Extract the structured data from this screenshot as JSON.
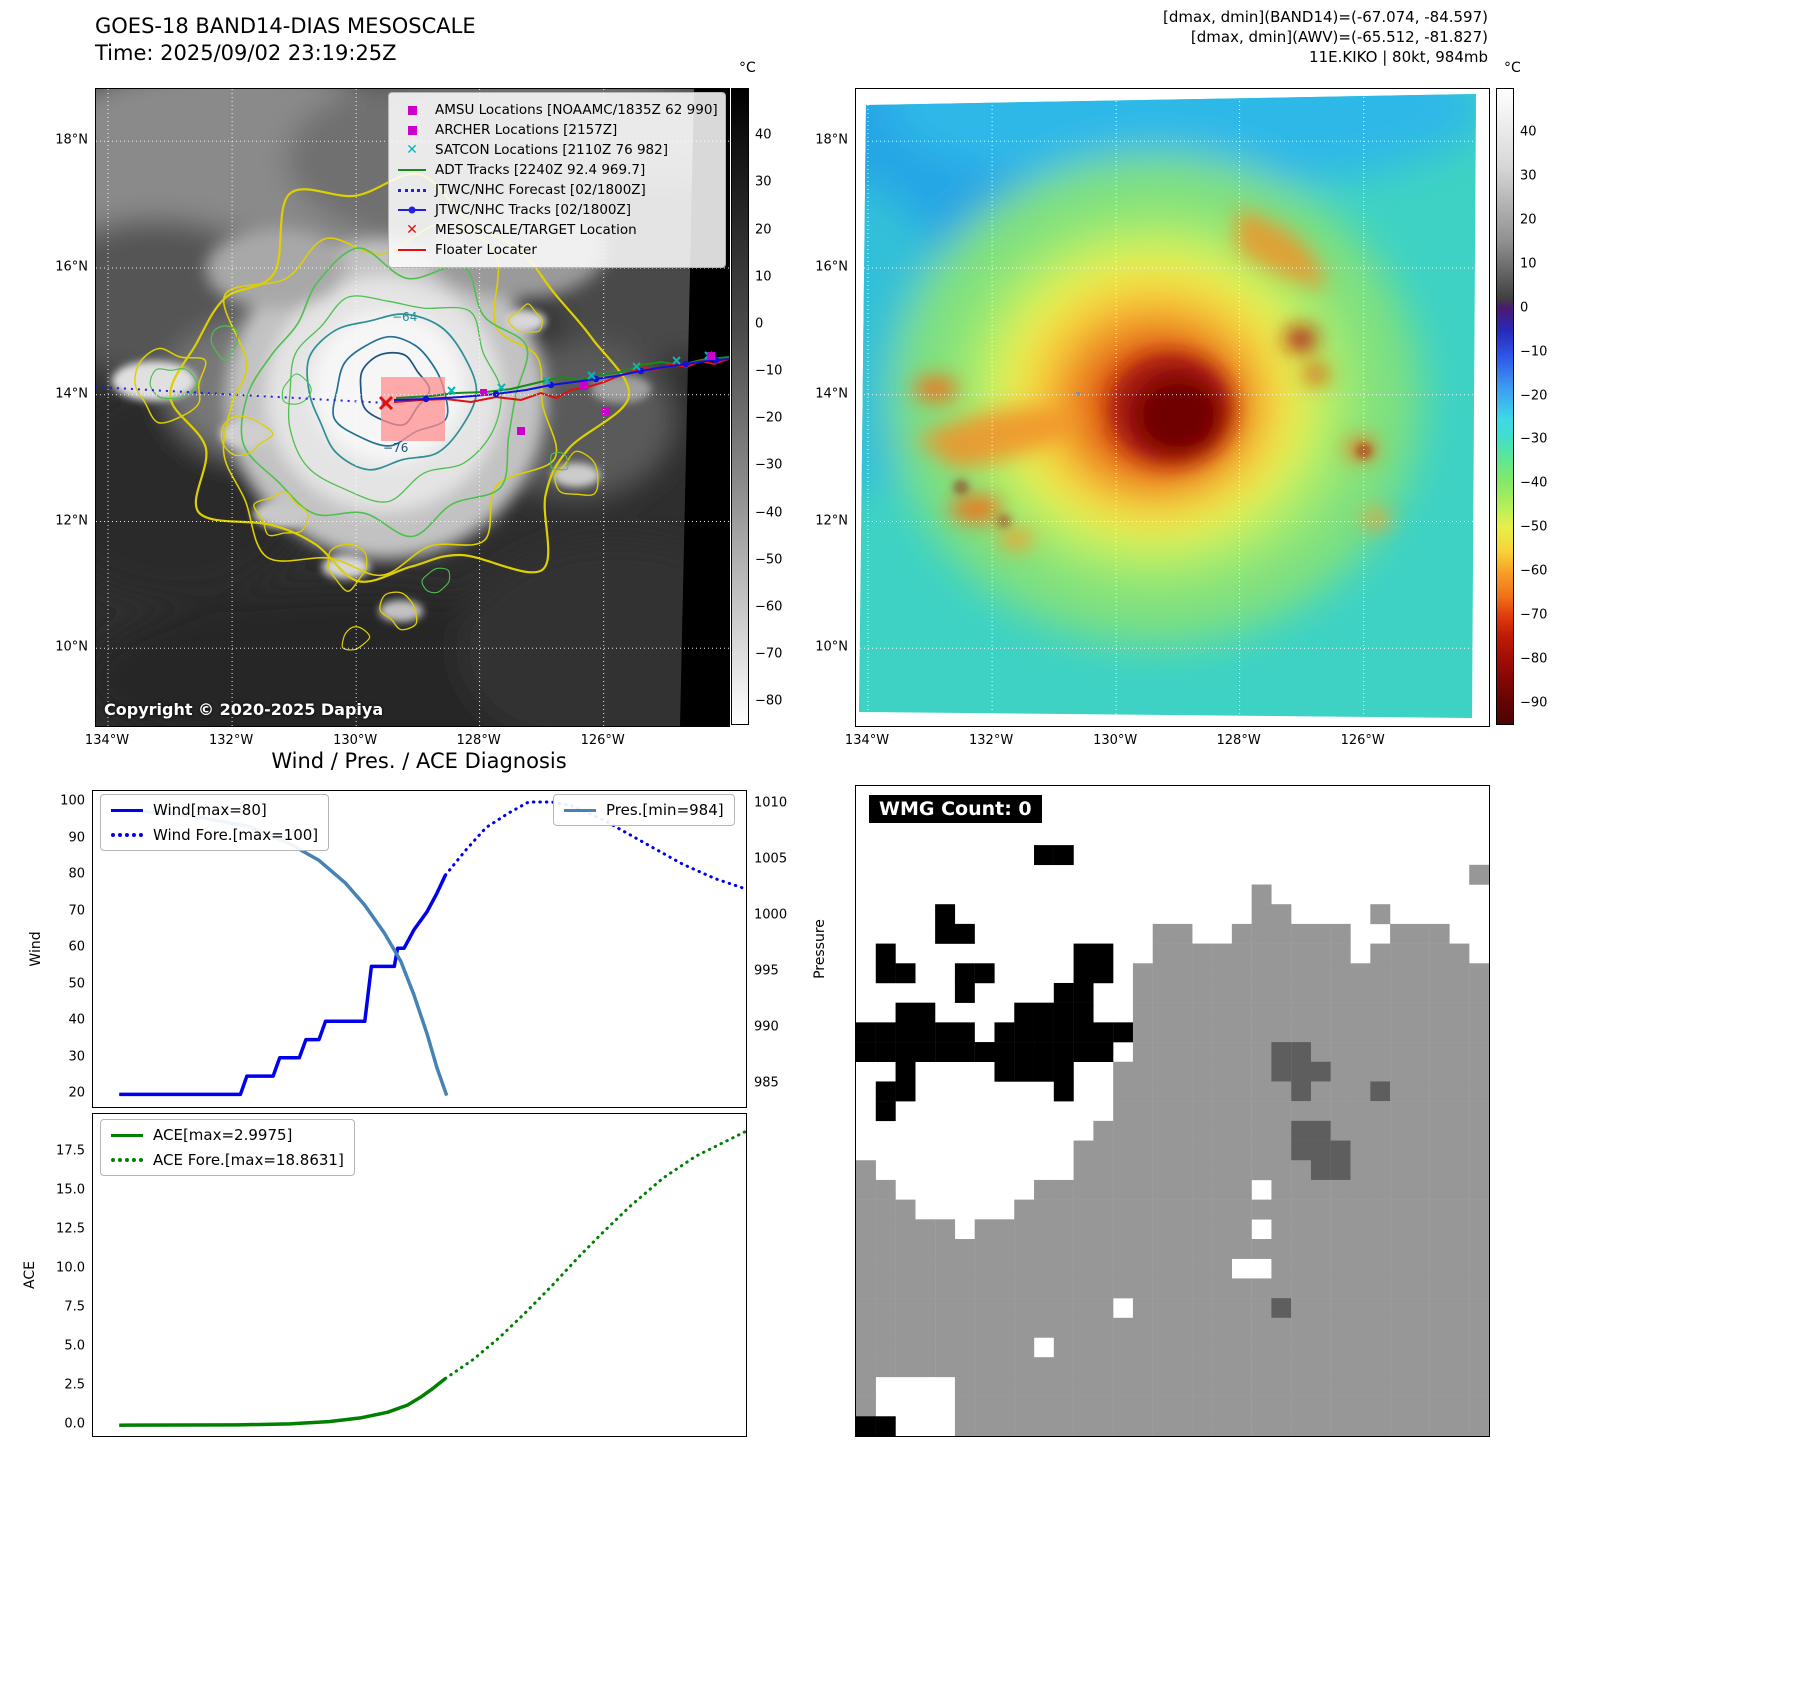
{
  "geo": {
    "lat_ticks": [
      "18°N",
      "16°N",
      "14°N",
      "12°N",
      "10°N"
    ],
    "lon_ticks": [
      "134°W",
      "132°W",
      "130°W",
      "128°W",
      "126°W"
    ]
  },
  "band14": {
    "title": "GOES-18 BAND14-DIAS MESOSCALE",
    "time_line": "Time: 2025/09/02 23:19:25Z",
    "copyright": "Copyright © 2020-2025 Dapiya",
    "contour_labels": [
      "−64",
      "−76"
    ],
    "colorbar": {
      "unit": "°C",
      "ticks": [
        "40",
        "30",
        "20",
        "10",
        "0",
        "−10",
        "−20",
        "−30",
        "−40",
        "−50",
        "−60",
        "−70",
        "−80"
      ]
    },
    "legend": [
      {
        "label": "AMSU Locations [NOAAMC/1835Z 62 990]",
        "marker": "square",
        "color": "#cc00cc"
      },
      {
        "label": "ARCHER Locations [2157Z]",
        "marker": "square",
        "color": "#cc00cc"
      },
      {
        "label": "SATCON Locations [2110Z 76 982]",
        "marker": "x",
        "color": "#00b8b8"
      },
      {
        "label": "ADT Tracks [2240Z 92.4 969.7]",
        "marker": "line",
        "color": "#1a8a1a"
      },
      {
        "label": "JTWC/NHC Forecast [02/1800Z]",
        "marker": "dotted-line",
        "color": "#2222dd"
      },
      {
        "label": "JTWC/NHC Tracks [02/1800Z]",
        "marker": "line-marker",
        "color": "#2222dd"
      },
      {
        "label": "MESOSCALE/TARGET Location",
        "marker": "x",
        "color": "#e01010"
      },
      {
        "label": "Floater Locater",
        "marker": "line",
        "color": "#e01010"
      }
    ]
  },
  "awv": {
    "header_lines": [
      "[dmax, dmin](BAND14)=(-67.074, -84.597)",
      "[dmax, dmin](AWV)=(-65.512, -81.827)",
      "11E.KIKO | 80kt, 984mb"
    ],
    "colorbar": {
      "unit": "°C",
      "ticks": [
        "40",
        "30",
        "20",
        "10",
        "0",
        "−10",
        "−20",
        "−30",
        "−40",
        "−50",
        "−60",
        "−70",
        "−80",
        "−90"
      ]
    }
  },
  "diagnosis_title": "Wind / Pres. / ACE Diagnosis",
  "chart_data": [
    {
      "id": "wind_pres",
      "type": "line",
      "axes": {
        "ylabel_left": "Wind",
        "ylabel_right": "Pressure",
        "yticks_left": [
          "100",
          "90",
          "80",
          "70",
          "60",
          "50",
          "40",
          "30",
          "20"
        ],
        "yticks_right": [
          "1010",
          "1005",
          "1000",
          "995",
          "990",
          "985"
        ],
        "ylim_left": [
          16,
          103
        ],
        "ylim_right": [
          982.8,
          1011.2
        ],
        "xlim": [
          0,
          1
        ],
        "grid": false
      },
      "legend_left": [
        "Wind[max=80]",
        "Wind Fore.[max=100]"
      ],
      "legend_right": [
        "Pres.[min=984]"
      ],
      "series": [
        {
          "name": "Wind observed",
          "axis": "left",
          "dash": "solid",
          "color": "#0000ee",
          "width": 3.5,
          "x": [
            0.04,
            0.225,
            0.235,
            0.275,
            0.285,
            0.315,
            0.325,
            0.345,
            0.355,
            0.415,
            0.425,
            0.46,
            0.465,
            0.475,
            0.49,
            0.51,
            0.525,
            0.538
          ],
          "y": [
            20,
            20,
            25,
            25,
            30,
            30,
            35,
            35,
            40,
            40,
            55,
            55,
            60,
            60,
            65,
            70,
            75,
            80
          ]
        },
        {
          "name": "Wind forecast",
          "axis": "left",
          "dash": "dotted",
          "color": "#0000ee",
          "width": 3,
          "x": [
            0.538,
            0.57,
            0.6,
            0.635,
            0.665,
            0.7,
            0.73,
            0.78,
            0.84,
            0.9,
            0.95,
            1.0
          ],
          "y": [
            80,
            87,
            93,
            97,
            100,
            100,
            99,
            95,
            89,
            83,
            79,
            76
          ]
        },
        {
          "name": "Pressure observed",
          "axis": "right",
          "dash": "solid",
          "color": "#4682b4",
          "width": 3.5,
          "x": [
            0.05,
            0.15,
            0.24,
            0.3,
            0.345,
            0.385,
            0.415,
            0.445,
            0.47,
            0.49,
            0.51,
            0.525,
            0.54
          ],
          "y": [
            1009.5,
            1009,
            1008,
            1006.5,
            1005,
            1003,
            1001,
            998.5,
            996,
            993,
            989.5,
            986.5,
            984
          ]
        }
      ]
    },
    {
      "id": "ace",
      "type": "line",
      "axes": {
        "ylabel_left": "ACE",
        "yticks_left": [
          "17.5",
          "15.0",
          "12.5",
          "10.0",
          "7.5",
          "5.0",
          "2.5",
          "0.0"
        ],
        "ylim_left": [
          -0.8,
          19.9
        ],
        "xlim": [
          0,
          1
        ],
        "grid": false
      },
      "legend_left": [
        "ACE[max=2.9975]",
        "ACE Fore.[max=18.8631]"
      ],
      "series": [
        {
          "name": "ACE observed",
          "axis": "left",
          "dash": "solid",
          "color": "#008000",
          "width": 3.5,
          "x": [
            0.04,
            0.22,
            0.3,
            0.36,
            0.41,
            0.45,
            0.48,
            0.5,
            0.52,
            0.538
          ],
          "y": [
            0.02,
            0.04,
            0.1,
            0.25,
            0.5,
            0.85,
            1.3,
            1.8,
            2.4,
            3.0
          ]
        },
        {
          "name": "ACE forecast",
          "axis": "left",
          "dash": "dotted",
          "color": "#008000",
          "width": 3,
          "x": [
            0.538,
            0.58,
            0.62,
            0.66,
            0.7,
            0.74,
            0.78,
            0.82,
            0.87,
            0.92,
            1.0
          ],
          "y": [
            3.0,
            4.2,
            5.6,
            7.2,
            8.9,
            10.7,
            12.4,
            14.0,
            15.8,
            17.2,
            18.86
          ]
        }
      ]
    }
  ],
  "wmg": {
    "label": "WMG Count: 0",
    "palette": {
      "G": "#979797",
      "D": "#5e5e5e",
      "B": "#000000"
    },
    "grid": [
      "................................",
      "................................",
      "................................",
      ".........BB.....................",
      "...............................G",
      "....................G...........",
      "....B...............GG....G.....",
      "....BB.........GG..GGGGGG..GGG..",
      ".B.........BB..GGGGGGGGGG.GGGGG.",
      ".BB..BB....BB.GGGGGGGGGGGGGGGGGG",
      ".....B....BB..GGGGGGGGGGGGGGGGGG",
      "..BB....BBBB..GGGGGGGGGGGGGGGGGG",
      "BBBBBB.BBBBBBBGGGGGGGGGGGGGGGGGG",
      "BBBBBBBBBBBBB.GGGGGGGDDGGGGGGGGG",
      "..B....BBBB..GGGGGGGGDDDGGGGGGGG",
      ".BB.......B..GGGGGGGGGDGGGDGGGGG",
      ".B...........GGGGGGGGGGGGGGGGGGG",
      "............GGGGGGGGGGDDGGGGGGGG",
      "...........GGGGGGGGGGGDDDGGGGGGG",
      "G..........GGGGGGGGGGGGDDGGGGGGG",
      "GG.......GGGGGGGGGGG.GGGGGGGGGGG",
      "GGG.....GGGGGGGGGGGGGGGGGGGGGGGG",
      "GGGGG.GGGGGGGGGGGGGG.GGGGGGGGGGG",
      "GGGGGGGGGGGGGGGGGGGGGGGGGGGGGGGG",
      "GGGGGGGGGGGGGGGGGGG..GGGGGGGGGGG",
      "GGGGGGGGGGGGGGGGGGGGGGGGGGGGGGGG",
      "GGGGGGGGGGGGG.GGGGGGGDGGGGGGGGGG",
      "GGGGGGGGGGGGGGGGGGGGGGGGGGGGGGGG",
      "GGGGGGGGG.GGGGGGGGGGGGGGGGGGGGGG",
      "GGGGGGGGGGGGGGGGGGGGGGGGGGGGGGGG",
      "G....GGGGGGGGGGGGGGGGGGGGGGGGGGG",
      "G....GGGGGGGGGGGGGGGGGGGGGGGGGGG",
      "BB...GGGGGGGGGGGGGGGGGGGGGGGGGGG"
    ]
  }
}
